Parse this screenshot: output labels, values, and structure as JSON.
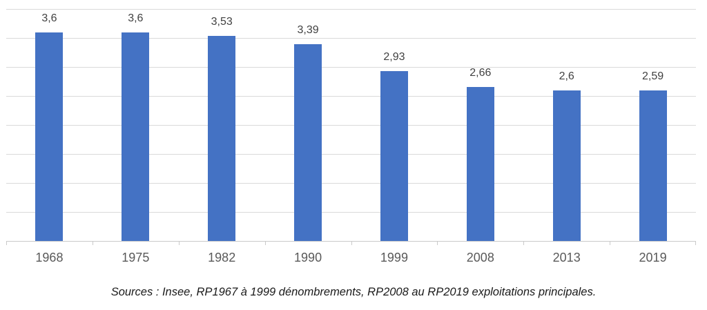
{
  "chart_data": {
    "type": "bar",
    "categories": [
      "1968",
      "1975",
      "1982",
      "1990",
      "1999",
      "2008",
      "2013",
      "2019"
    ],
    "values": [
      3.6,
      3.6,
      3.53,
      3.39,
      2.93,
      2.66,
      2.6,
      2.59
    ],
    "value_labels": [
      "3,6",
      "3,6",
      "3,53",
      "3,39",
      "2,93",
      "2,66",
      "2,6",
      "2,59"
    ],
    "title": "",
    "xlabel": "",
    "ylabel": "",
    "ylim": [
      0,
      4
    ],
    "gridline_step": 0.5,
    "grid": true,
    "legend": false,
    "y_axis_labels_visible": false,
    "colors": {
      "bar": "#4472C4",
      "gridline": "#D9D9D9",
      "axis": "#C9C9C9",
      "value_label": "#404040",
      "tick_label": "#595959"
    }
  },
  "source_note": "Sources : Insee, RP1967 à 1999 dénombrements, RP2008 au RP2019 exploitations principales."
}
